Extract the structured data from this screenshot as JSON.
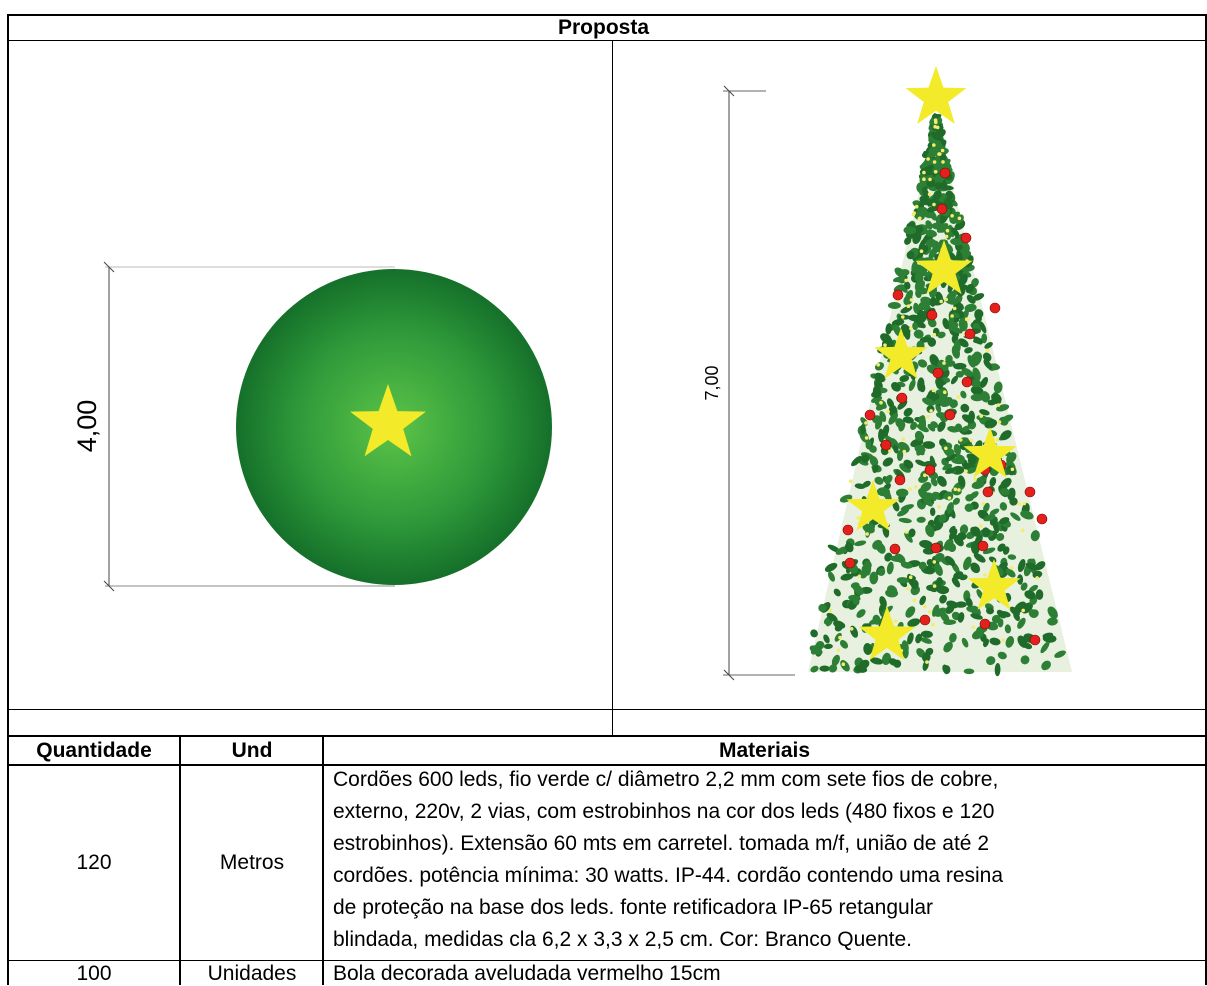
{
  "header": {
    "title": "Proposta"
  },
  "drawings": {
    "ball": {
      "dimension_label": "4,00",
      "ball_color": "#2f9a3a",
      "star_color": "#f3ea2a"
    },
    "tree": {
      "dimension_label": "7,00",
      "leaf_color": "#1f6b2a",
      "ornament_color": "#e3201c",
      "star_color": "#f3ea2a"
    }
  },
  "table": {
    "headers": {
      "quantity": "Quantidade",
      "unit": "Und",
      "materials": "Materiais"
    },
    "rows": [
      {
        "quantity": "120",
        "unit": "Metros",
        "description_lines": [
          "Cordões 600 leds, fio verde c/ diâmetro 2,2 mm com sete fios de cobre,",
          "externo, 220v, 2 vias, com estrobinhos na cor dos leds (480 fixos e 120",
          "estrobinhos). Extensão 60 mts em carretel. tomada m/f, união de até 2",
          "cordões. potência mínima: 30 watts. IP-44. cordão contendo uma resina",
          "de proteção na base dos leds. fonte retificadora IP-65 retangular",
          "blindada, medidas cla 6,2 x 3,3 x 2,5 cm. Cor: Branco Quente."
        ]
      },
      {
        "quantity": "100",
        "unit": "Unidades",
        "description_lines": [
          "Bola decorada aveludada vermelho 15cm"
        ]
      }
    ]
  }
}
